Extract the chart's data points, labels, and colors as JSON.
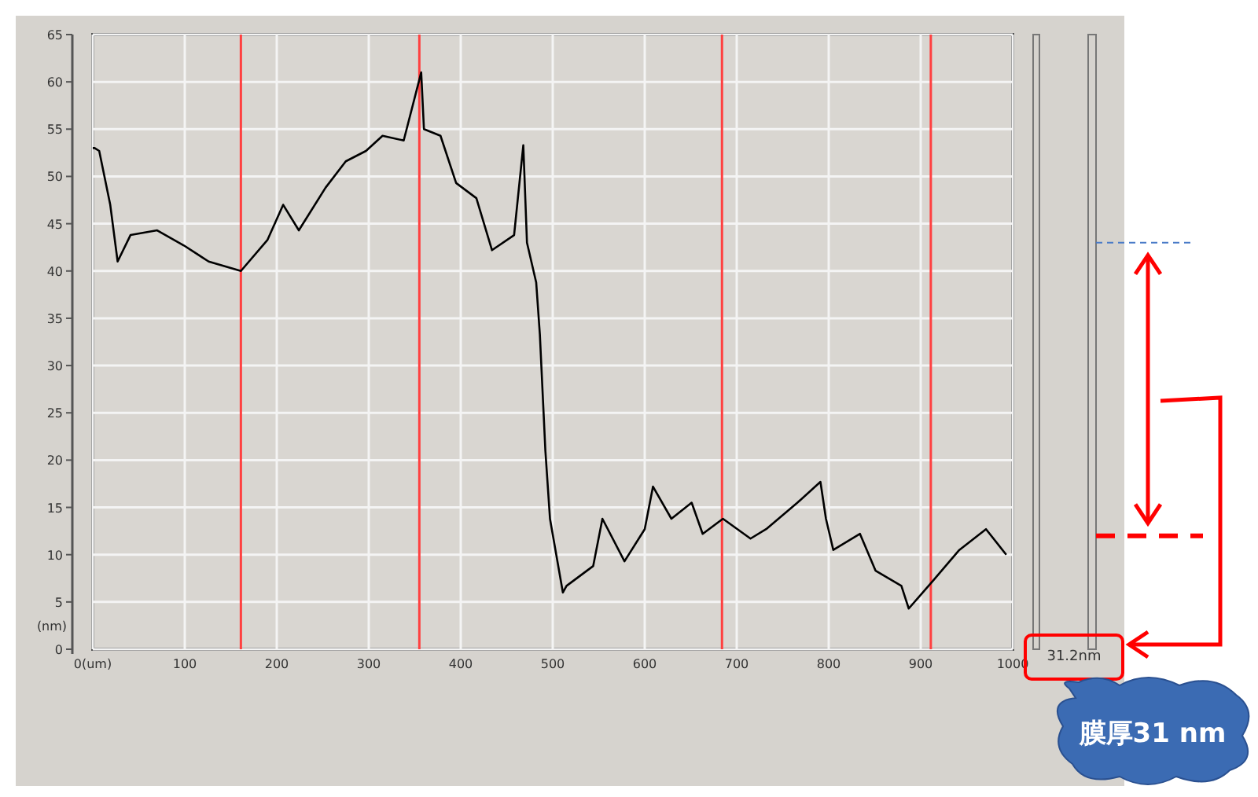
{
  "chart_data": {
    "type": "line",
    "ylabel": "(nm)",
    "x": [
      0,
      2,
      7,
      19,
      27,
      41,
      70,
      99,
      126,
      161,
      190,
      207,
      224,
      253,
      275,
      297,
      315,
      338,
      357,
      360,
      378,
      395,
      417,
      434,
      458,
      468,
      472,
      482,
      486,
      492,
      497,
      511,
      515,
      544,
      554,
      578,
      600,
      609,
      629,
      651,
      663,
      685,
      715,
      732,
      766,
      791,
      797,
      805,
      834,
      851,
      879,
      887,
      913,
      942,
      971,
      993
    ],
    "series": [
      {
        "color": "#000000",
        "values": [
          53,
          53,
          52.7,
          47,
          41,
          43.8,
          44.3,
          42.7,
          41,
          40,
          43.3,
          47,
          44.3,
          48.8,
          51.6,
          52.7,
          54.3,
          53.8,
          61,
          55,
          54.3,
          49.3,
          47.7,
          42.2,
          43.8,
          53.3,
          43,
          38.8,
          33.3,
          21,
          13.8,
          6,
          6.7,
          8.8,
          13.8,
          9.3,
          12.7,
          17.2,
          13.8,
          15.5,
          12.2,
          13.8,
          11.7,
          12.7,
          15.5,
          17.7,
          13.8,
          10.5,
          12.2,
          8.3,
          6.7,
          4.3,
          7.2,
          10.5,
          12.7,
          10
        ]
      }
    ],
    "xlim": [
      0,
      1000
    ],
    "ylim": [
      0,
      65
    ],
    "xticks": [
      {
        "value": 0,
        "label": "0(um)"
      },
      100,
      200,
      300,
      400,
      500,
      600,
      700,
      800,
      900,
      1000
    ],
    "yticks": [
      0,
      5,
      10,
      15,
      20,
      25,
      30,
      35,
      40,
      45,
      50,
      55,
      60,
      65
    ],
    "grid": true,
    "marker": "none",
    "line_style": "solid",
    "ref_lines": [
      {
        "axis": "x",
        "value": 161,
        "color": "#ff4040"
      },
      {
        "axis": "x",
        "value": 355,
        "color": "#ff4040"
      },
      {
        "axis": "x",
        "value": 684,
        "color": "#ff4040"
      },
      {
        "axis": "x",
        "value": 911,
        "color": "#ff4040"
      }
    ],
    "annotations": [
      "31.2nm",
      "膜厚31 nm"
    ]
  }
}
